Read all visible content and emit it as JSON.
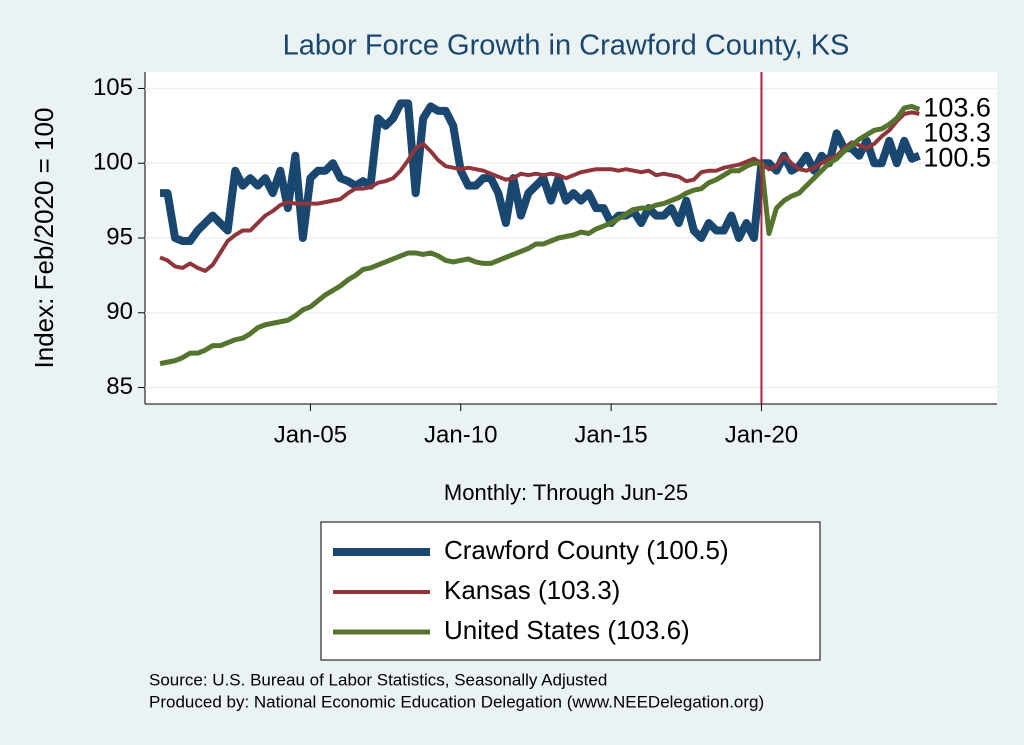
{
  "chart_data": {
    "type": "line",
    "title": "Labor Force Growth in Crawford  County, KS",
    "ylabel": "Index: Feb/2020 = 100",
    "xlabel": "Monthly: Through Jun-25",
    "notes": [
      "Source: U.S. Bureau of Labor Statistics, Seasonally Adjusted",
      "Produced by: National Economic Education Delegation (www.NEEDelegation.org)"
    ],
    "x": [
      "Jan-00",
      "Apr-00",
      "Jul-00",
      "Oct-00",
      "Jan-01",
      "Apr-01",
      "Jul-01",
      "Oct-01",
      "Jan-02",
      "Apr-02",
      "Jul-02",
      "Oct-02",
      "Jan-03",
      "Apr-03",
      "Jul-03",
      "Oct-03",
      "Jan-04",
      "Apr-04",
      "Jul-04",
      "Oct-04",
      "Jan-05",
      "Apr-05",
      "Jul-05",
      "Oct-05",
      "Jan-06",
      "Apr-06",
      "Jul-06",
      "Oct-06",
      "Jan-07",
      "Apr-07",
      "Jul-07",
      "Oct-07",
      "Jan-08",
      "Apr-08",
      "Jul-08",
      "Oct-08",
      "Jan-09",
      "Apr-09",
      "Jul-09",
      "Oct-09",
      "Jan-10",
      "Apr-10",
      "Jul-10",
      "Oct-10",
      "Jan-11",
      "Apr-11",
      "Jul-11",
      "Oct-11",
      "Jan-12",
      "Apr-12",
      "Jul-12",
      "Oct-12",
      "Jan-13",
      "Apr-13",
      "Jul-13",
      "Oct-13",
      "Jan-14",
      "Apr-14",
      "Jul-14",
      "Oct-14",
      "Jan-15",
      "Apr-15",
      "Jul-15",
      "Oct-15",
      "Jan-16",
      "Apr-16",
      "Jul-16",
      "Oct-16",
      "Jan-17",
      "Apr-17",
      "Jul-17",
      "Oct-17",
      "Jan-18",
      "Apr-18",
      "Jul-18",
      "Oct-18",
      "Jan-19",
      "Apr-19",
      "Jul-19",
      "Oct-19",
      "Jan-20",
      "Apr-20",
      "Jul-20",
      "Oct-20",
      "Jan-21",
      "Apr-21",
      "Jul-21",
      "Oct-21",
      "Jan-22",
      "Apr-22",
      "Jul-22",
      "Oct-22",
      "Jan-23",
      "Apr-23",
      "Jul-23",
      "Oct-23",
      "Jan-24",
      "Apr-24",
      "Jul-24",
      "Oct-24",
      "Jan-25",
      "Apr-25"
    ],
    "series": [
      {
        "name": "Crawford  County (100.5)",
        "color": "#1a476f",
        "width": 8,
        "end_label": 100.5,
        "values": [
          98,
          98,
          95,
          94.8,
          94.8,
          95.5,
          96,
          96.5,
          96,
          95.5,
          99.5,
          98.5,
          99,
          98.5,
          99,
          98,
          99.5,
          97,
          100.5,
          95,
          99,
          99.5,
          99.5,
          100,
          99,
          98.8,
          98.5,
          98.8,
          98.5,
          103,
          102.5,
          103,
          104,
          104,
          98,
          103,
          103.8,
          103.5,
          103.5,
          102.5,
          99.5,
          98.5,
          98.5,
          99,
          99,
          98,
          96,
          99,
          96.5,
          98,
          98.5,
          99,
          97.5,
          99,
          97.5,
          98,
          97.5,
          98,
          97,
          97,
          96,
          96.5,
          96.5,
          96.8,
          96,
          97,
          96.5,
          96.5,
          97,
          96,
          97.5,
          95.5,
          95,
          96,
          95.5,
          95.5,
          96.5,
          95,
          96,
          95,
          100,
          100,
          99.5,
          100.5,
          99.5,
          99.8,
          100.5,
          99.5,
          100.5,
          100,
          102,
          101,
          101,
          100.5,
          101.5,
          100,
          100,
          101.5,
          100,
          101.5,
          100.3,
          100.5
        ]
      },
      {
        "name": "Kansas (103.3)",
        "color": "#90353b",
        "width": 4,
        "end_label": 103.3,
        "values": [
          93.7,
          93.5,
          93.1,
          93,
          93.3,
          93,
          92.8,
          93.2,
          94,
          94.8,
          95.2,
          95.5,
          95.5,
          96,
          96.5,
          96.8,
          97.2,
          97.4,
          97.3,
          97.3,
          97.3,
          97.3,
          97.4,
          97.5,
          97.6,
          98,
          98.3,
          98.3,
          98.4,
          98.7,
          98.8,
          99,
          99.5,
          100.2,
          101,
          101.3,
          100.8,
          100.2,
          99.8,
          99.7,
          99.6,
          99.7,
          99.6,
          99.5,
          99.3,
          99.1,
          98.9,
          99,
          99.3,
          99.2,
          99.3,
          99.2,
          99.3,
          99.2,
          99,
          99.2,
          99.4,
          99.5,
          99.6,
          99.6,
          99.6,
          99.5,
          99.6,
          99.5,
          99.4,
          99.5,
          99.2,
          99.3,
          99.2,
          99.1,
          98.8,
          98.9,
          99.4,
          99.5,
          99.5,
          99.7,
          99.8,
          99.9,
          100.1,
          100.3,
          100,
          99.6,
          99.8,
          100.5,
          100,
          99.6,
          99.5,
          99.7,
          100,
          100.3,
          100.5,
          101,
          101.4,
          101.2,
          101,
          101.3,
          101.8,
          102.2,
          102.8,
          103.3,
          103.4,
          103.3
        ]
      },
      {
        "name": "United States (103.6)",
        "color": "#55752f",
        "width": 5,
        "end_label": 103.6,
        "values": [
          86.6,
          86.7,
          86.8,
          87,
          87.3,
          87.3,
          87.5,
          87.8,
          87.8,
          88,
          88.2,
          88.3,
          88.6,
          89,
          89.2,
          89.3,
          89.4,
          89.5,
          89.8,
          90.2,
          90.4,
          90.8,
          91.2,
          91.5,
          91.8,
          92.2,
          92.5,
          92.9,
          93,
          93.2,
          93.4,
          93.6,
          93.8,
          94,
          94,
          93.9,
          94,
          93.8,
          93.5,
          93.4,
          93.5,
          93.6,
          93.4,
          93.3,
          93.3,
          93.5,
          93.7,
          93.9,
          94.1,
          94.3,
          94.6,
          94.6,
          94.8,
          95,
          95.1,
          95.2,
          95.4,
          95.3,
          95.6,
          95.8,
          96,
          96.3,
          96.6,
          96.9,
          97,
          97,
          97.2,
          97.3,
          97.5,
          97.7,
          98,
          98.2,
          98.3,
          98.7,
          98.9,
          99.2,
          99.5,
          99.5,
          99.8,
          100,
          100,
          95.3,
          97,
          97.5,
          97.8,
          98,
          98.5,
          99,
          99.5,
          100,
          100.3,
          100.8,
          101.2,
          101.6,
          101.9,
          102.2,
          102.3,
          102.6,
          103,
          103.7,
          103.8,
          103.6
        ]
      }
    ],
    "xlim": [
      "Jul-99",
      "Nov-27"
    ],
    "xticks": [
      "Jan-05",
      "Jan-10",
      "Jan-15",
      "Jan-20"
    ],
    "ylim": [
      83.9,
      106.1
    ],
    "yticks": [
      85,
      90,
      95,
      100,
      105
    ],
    "vline": "Jan-20",
    "vline_color": "#b0203b",
    "grid": true
  }
}
